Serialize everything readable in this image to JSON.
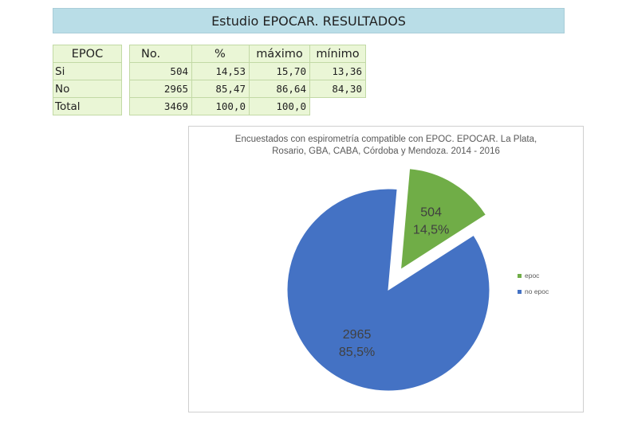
{
  "page": {
    "title": "Estudio EPOCAR. RESULTADOS"
  },
  "table": {
    "headers": [
      "EPOC",
      "No.",
      "%",
      "máximo",
      "mínimo"
    ],
    "rows": [
      [
        "Si",
        "504",
        "14,53",
        "15,70",
        "13,36"
      ],
      [
        "No",
        "2965",
        "85,47",
        "86,64",
        "84,30"
      ],
      [
        "Total",
        "3469",
        "100,0",
        "100,0",
        ""
      ]
    ]
  },
  "chart_data": {
    "type": "pie",
    "title": "Encuestados con espirometría compatible con EPOC. EPOCAR. La Plata, Rosario, GBA, CABA, Córdoba y Mendoza. 2014 - 2016",
    "title_lines": [
      "Encuestados con espirometría compatible con EPOC. EPOCAR. La Plata,",
      "Rosario, GBA, CABA, Córdoba y Mendoza. 2014 - 2016"
    ],
    "categories": [
      "epoc",
      "no epoc"
    ],
    "values": [
      504,
      2965
    ],
    "data_labels": [
      [
        "504",
        "14,5%"
      ],
      [
        "2965",
        "85,5%"
      ]
    ],
    "colors": [
      "#70ad47",
      "#4472c4"
    ],
    "exploded": [
      "epoc"
    ],
    "legend_position": "right"
  }
}
